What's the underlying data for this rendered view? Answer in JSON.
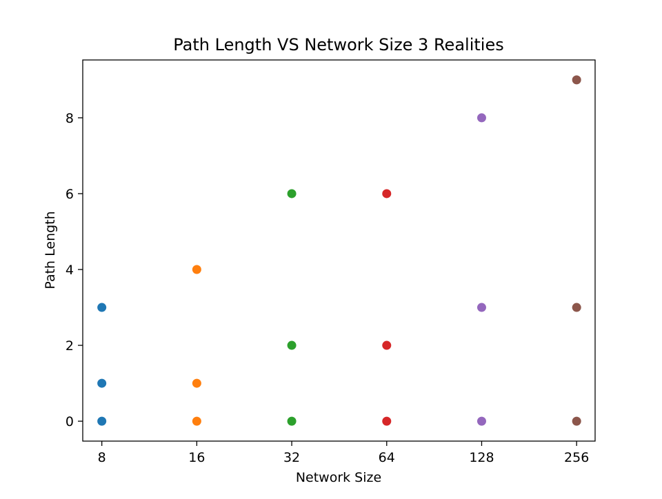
{
  "chart_data": {
    "type": "scatter",
    "title": "Path Length VS Network Size 3 Realities",
    "xlabel": "Network Size",
    "ylabel": "Path Length",
    "x_scale": "log2",
    "xlim": [
      6.96,
      293.0
    ],
    "ylim": [
      -0.525,
      9.525
    ],
    "xticks": [
      {
        "value": 8,
        "label": "8"
      },
      {
        "value": 16,
        "label": "16"
      },
      {
        "value": 32,
        "label": "32"
      },
      {
        "value": 64,
        "label": "64"
      },
      {
        "value": 128,
        "label": "128"
      },
      {
        "value": 256,
        "label": "256"
      }
    ],
    "yticks": [
      {
        "value": 0,
        "label": "0"
      },
      {
        "value": 2,
        "label": "2"
      },
      {
        "value": 4,
        "label": "4"
      },
      {
        "value": 6,
        "label": "6"
      },
      {
        "value": 8,
        "label": "8"
      }
    ],
    "grid": false,
    "legend": "none",
    "series": [
      {
        "color": "#1f77b4",
        "points": [
          {
            "x": 8,
            "y": 3
          },
          {
            "x": 8,
            "y": 1
          },
          {
            "x": 8,
            "y": 0
          }
        ]
      },
      {
        "color": "#ff7f0e",
        "points": [
          {
            "x": 16,
            "y": 4
          },
          {
            "x": 16,
            "y": 1
          },
          {
            "x": 16,
            "y": 0
          }
        ]
      },
      {
        "color": "#2ca02c",
        "points": [
          {
            "x": 32,
            "y": 6
          },
          {
            "x": 32,
            "y": 2
          },
          {
            "x": 32,
            "y": 0
          }
        ]
      },
      {
        "color": "#d62728",
        "points": [
          {
            "x": 64,
            "y": 6
          },
          {
            "x": 64,
            "y": 2
          },
          {
            "x": 64,
            "y": 0
          }
        ]
      },
      {
        "color": "#9467bd",
        "points": [
          {
            "x": 128,
            "y": 8
          },
          {
            "x": 128,
            "y": 3
          },
          {
            "x": 128,
            "y": 0
          }
        ]
      },
      {
        "color": "#8c564b",
        "points": [
          {
            "x": 256,
            "y": 9
          },
          {
            "x": 256,
            "y": 3
          },
          {
            "x": 256,
            "y": 0
          }
        ]
      }
    ]
  }
}
